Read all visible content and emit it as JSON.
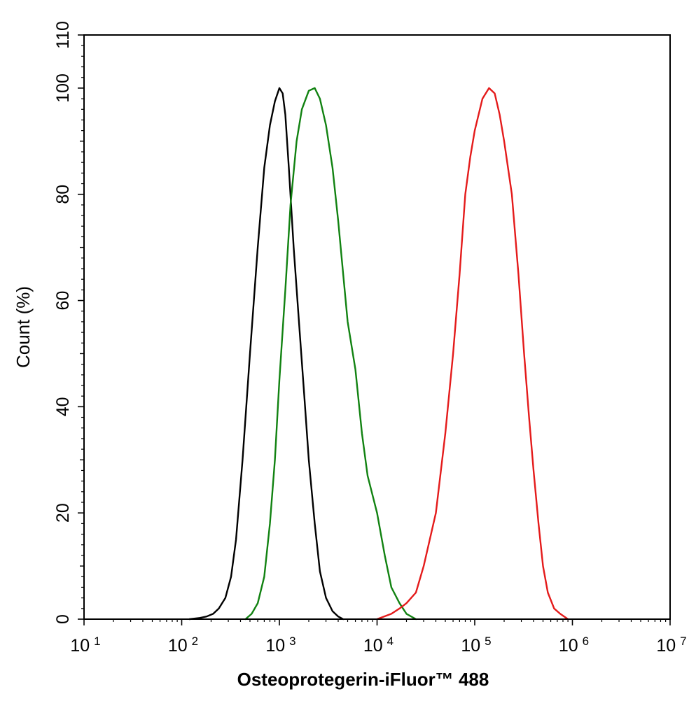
{
  "chart_data": {
    "type": "line",
    "xlabel": "Osteoprotegerin-iFluor™ 488",
    "ylabel": "Count  (%)",
    "x_scale": "log",
    "xlim": [
      10,
      10000000
    ],
    "ylim": [
      0,
      110
    ],
    "x_ticks": [
      {
        "base": "10",
        "exp": "1"
      },
      {
        "base": "10",
        "exp": "2"
      },
      {
        "base": "10",
        "exp": "3"
      },
      {
        "base": "10",
        "exp": "4"
      },
      {
        "base": "10",
        "exp": "5"
      },
      {
        "base": "10",
        "exp": "6"
      },
      {
        "base": "10",
        "exp": "7"
      }
    ],
    "y_ticks": [
      "0",
      "20",
      "40",
      "60",
      "80",
      "100",
      "110"
    ],
    "grid": false,
    "legend": "none",
    "series": [
      {
        "color": "#000000",
        "points": [
          [
            120,
            0
          ],
          [
            150,
            0.2
          ],
          [
            180,
            0.5
          ],
          [
            210,
            1
          ],
          [
            240,
            2
          ],
          [
            280,
            4
          ],
          [
            320,
            8
          ],
          [
            360,
            15
          ],
          [
            420,
            30
          ],
          [
            500,
            50
          ],
          [
            600,
            70
          ],
          [
            700,
            85
          ],
          [
            800,
            93
          ],
          [
            900,
            97.5
          ],
          [
            1000,
            100
          ],
          [
            1080,
            99
          ],
          [
            1150,
            95
          ],
          [
            1250,
            85
          ],
          [
            1400,
            70
          ],
          [
            1600,
            55
          ],
          [
            1800,
            42
          ],
          [
            2000,
            30
          ],
          [
            2300,
            18
          ],
          [
            2600,
            9
          ],
          [
            3000,
            4
          ],
          [
            3500,
            1.5
          ],
          [
            4000,
            0.5
          ],
          [
            4500,
            0
          ]
        ]
      },
      {
        "color": "#118211",
        "points": [
          [
            450,
            0
          ],
          [
            520,
            1
          ],
          [
            600,
            3
          ],
          [
            700,
            8
          ],
          [
            800,
            18
          ],
          [
            900,
            30
          ],
          [
            1000,
            45
          ],
          [
            1150,
            62
          ],
          [
            1300,
            78
          ],
          [
            1500,
            90
          ],
          [
            1700,
            96
          ],
          [
            2000,
            99.5
          ],
          [
            2300,
            100
          ],
          [
            2600,
            98
          ],
          [
            3000,
            93
          ],
          [
            3500,
            85
          ],
          [
            4000,
            75
          ],
          [
            4500,
            65
          ],
          [
            5000,
            56
          ],
          [
            6000,
            47
          ],
          [
            7000,
            35
          ],
          [
            8000,
            27
          ],
          [
            10000,
            20
          ],
          [
            12000,
            12
          ],
          [
            14000,
            6
          ],
          [
            17000,
            3
          ],
          [
            20000,
            1
          ],
          [
            25000,
            0
          ]
        ]
      },
      {
        "color": "#e41b1b",
        "points": [
          [
            10000,
            0
          ],
          [
            14000,
            1
          ],
          [
            17000,
            2
          ],
          [
            20000,
            3
          ],
          [
            25000,
            5
          ],
          [
            30000,
            10
          ],
          [
            40000,
            20
          ],
          [
            50000,
            35
          ],
          [
            60000,
            50
          ],
          [
            70000,
            65
          ],
          [
            80000,
            80
          ],
          [
            90000,
            87
          ],
          [
            100000,
            92
          ],
          [
            120000,
            98
          ],
          [
            140000,
            100
          ],
          [
            160000,
            99
          ],
          [
            180000,
            95
          ],
          [
            200000,
            90
          ],
          [
            240000,
            80
          ],
          [
            280000,
            65
          ],
          [
            320000,
            50
          ],
          [
            360000,
            38
          ],
          [
            400000,
            28
          ],
          [
            450000,
            18
          ],
          [
            500000,
            10
          ],
          [
            560000,
            5
          ],
          [
            650000,
            2
          ],
          [
            750000,
            1
          ],
          [
            900000,
            0
          ]
        ]
      }
    ]
  }
}
